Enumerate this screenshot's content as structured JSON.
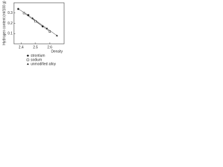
{
  "chart_data": {
    "type": "scatter",
    "y_label": "Hydrogen content (ml/100 g)",
    "x_label": "Density",
    "xlim": [
      2.35,
      2.7
    ],
    "xticks": [
      2.4,
      2.5,
      2.6
    ],
    "ylim": [
      0,
      0.4
    ],
    "yticks": [
      0.1,
      0.2,
      0.3
    ],
    "series": [
      {
        "name": "strontium",
        "color": "#222222",
        "marker": "circle",
        "x": [
          2.38,
          2.45,
          2.55
        ],
        "values": [
          0.34,
          0.28,
          0.17
        ]
      },
      {
        "name": "sodium",
        "color": "#222222",
        "marker": "square",
        "x": [
          2.42,
          2.5,
          2.6
        ],
        "values": [
          0.3,
          0.22,
          0.12
        ]
      },
      {
        "name": "unmodified alloy",
        "color": "#222222",
        "marker": "triangle",
        "x": [
          2.48,
          2.58,
          2.65
        ],
        "values": [
          0.25,
          0.15,
          0.08
        ]
      }
    ]
  }
}
